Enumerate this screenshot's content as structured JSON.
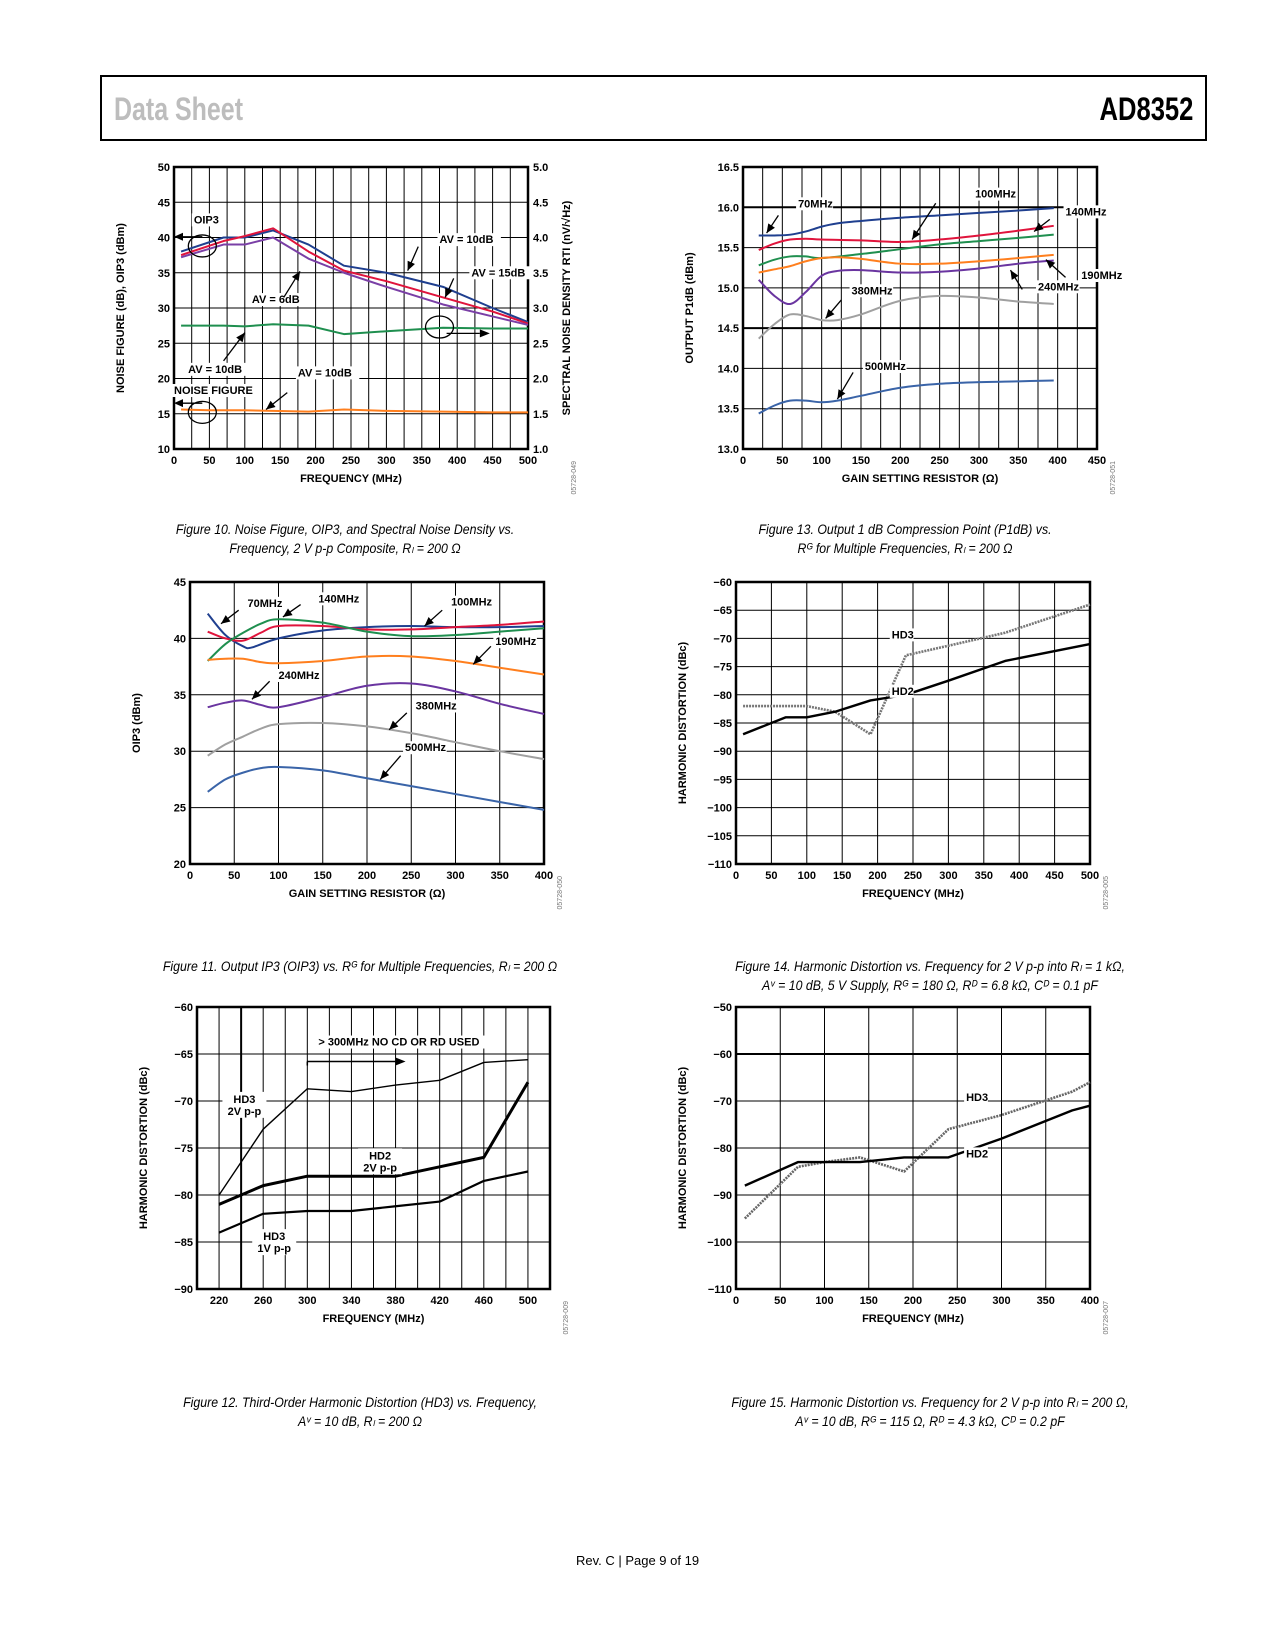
{
  "header": {
    "left": "Data Sheet",
    "right": "AD8352"
  },
  "footer": "Rev. C | Page 9 of 19",
  "chart_data": [
    {
      "id": "fig10",
      "type": "line",
      "caption": "Figure 10. Noise Figure, OIP3, and Spectral Noise Density vs. Frequency, 2 V p-p Composite, Rₗ = 200 Ω",
      "caption_lines": [
        "Figure 10. Noise Figure, OIP3, and Spectral Noise Density vs.",
        "Frequency, 2 V p-p Composite, Rₗ = 200 Ω"
      ],
      "xlabel": "FREQUENCY (MHz)",
      "ylabel": "NOISE FIGURE (dB), OIP3 (dBm)",
      "y2label": "SPECTRAL NOISE DENSITY RTI (nV/√Hz)",
      "xlim": [
        0,
        500
      ],
      "ylim": [
        10,
        50
      ],
      "y2lim": [
        1.0,
        5.0
      ],
      "xticks": [
        0,
        50,
        100,
        150,
        200,
        250,
        300,
        350,
        400,
        450,
        500
      ],
      "yticks": [
        10,
        15,
        20,
        25,
        30,
        35,
        40,
        45,
        50
      ],
      "y2ticks": [
        "1.0",
        "1.5",
        "2.0",
        "2.5",
        "3.0",
        "3.5",
        "4.0",
        "4.5",
        "5.0"
      ],
      "grid": true,
      "code": "05728-049",
      "series": [
        {
          "name": "OIP3 AV = 10dB",
          "color": "#1f3f8f",
          "axis": "left",
          "x": [
            10,
            70,
            100,
            140,
            190,
            240,
            300,
            380,
            450,
            500
          ],
          "y": [
            38,
            40,
            40,
            41,
            39,
            36,
            35,
            33,
            30,
            28
          ]
        },
        {
          "name": "OIP3 AV = 15dB",
          "color": "#e0143c",
          "axis": "left",
          "x": [
            10,
            70,
            100,
            140,
            190,
            240,
            300,
            380,
            450,
            500
          ],
          "y": [
            37.5,
            39.5,
            40.2,
            41.3,
            38,
            35.3,
            33.8,
            31.5,
            29.5,
            27.8
          ]
        },
        {
          "name": "OIP3 AV = 6dB",
          "color": "#7a3fa6",
          "axis": "left",
          "x": [
            10,
            70,
            100,
            140,
            190,
            240,
            300,
            380,
            450,
            500
          ],
          "y": [
            37.2,
            39,
            39,
            40,
            37,
            35,
            33,
            30.5,
            28.8,
            27.6
          ]
        },
        {
          "name": "Spectral noise density AV = 10dB",
          "color": "#1f8f4f",
          "axis": "left",
          "x": [
            10,
            70,
            100,
            140,
            190,
            240,
            300,
            380,
            450,
            500
          ],
          "y": [
            27.5,
            27.5,
            27.4,
            27.7,
            27.5,
            26.3,
            26.7,
            27.2,
            27.1,
            27.1
          ]
        },
        {
          "name": "Noise figure AV = 10dB",
          "color": "#ff7f1e",
          "axis": "left",
          "x": [
            10,
            50,
            100,
            140,
            190,
            240,
            300,
            380,
            450,
            500
          ],
          "y": [
            15.6,
            15.5,
            15.5,
            15.4,
            15.3,
            15.6,
            15.4,
            15.3,
            15.2,
            15.2
          ]
        }
      ],
      "annotations": [
        "OIP3",
        "AV = 10dB",
        "AV = 15dB",
        "AV = 6dB",
        "AV = 10dB",
        "NOISE FIGURE",
        "AV = 10dB"
      ]
    },
    {
      "id": "fig13",
      "type": "line",
      "caption_lines": [
        "Figure 13. Output 1 dB Compression Point (P1dB) vs.",
        "Rᴳ for Multiple Frequencies, Rₗ = 200 Ω"
      ],
      "xlabel": "GAIN SETTING RESISTOR (Ω)",
      "ylabel": "OUTPUT P1dB (dBm)",
      "xlim": [
        0,
        450
      ],
      "ylim": [
        13.0,
        16.5
      ],
      "xticks": [
        0,
        50,
        100,
        150,
        200,
        250,
        300,
        350,
        400,
        450
      ],
      "yticks": [
        "13.0",
        "13.5",
        "14.0",
        "14.5",
        "15.0",
        "15.5",
        "16.0",
        "16.5"
      ],
      "grid": true,
      "code": "05728-051",
      "series": [
        {
          "name": "70MHz",
          "color": "#1f3f8f",
          "x": [
            20,
            40,
            60,
            80,
            100,
            120,
            150,
            200,
            250,
            300,
            350,
            395
          ],
          "y": [
            15.65,
            15.65,
            15.66,
            15.7,
            15.76,
            15.8,
            15.83,
            15.87,
            15.9,
            15.93,
            15.96,
            15.99
          ]
        },
        {
          "name": "100MHz",
          "color": "#e0143c",
          "x": [
            20,
            40,
            60,
            80,
            100,
            150,
            200,
            250,
            300,
            350,
            395
          ],
          "y": [
            15.47,
            15.55,
            15.6,
            15.61,
            15.6,
            15.59,
            15.57,
            15.6,
            15.65,
            15.71,
            15.77
          ]
        },
        {
          "name": "140MHz",
          "color": "#1f8f4f",
          "x": [
            20,
            40,
            60,
            80,
            100,
            150,
            200,
            250,
            300,
            350,
            395
          ],
          "y": [
            15.28,
            15.35,
            15.39,
            15.39,
            15.37,
            15.42,
            15.48,
            15.54,
            15.58,
            15.62,
            15.66
          ]
        },
        {
          "name": "190MHz",
          "color": "#ff7f1e",
          "x": [
            20,
            40,
            60,
            80,
            100,
            120,
            150,
            200,
            250,
            300,
            350,
            395
          ],
          "y": [
            15.19,
            15.23,
            15.27,
            15.33,
            15.37,
            15.38,
            15.36,
            15.3,
            15.3,
            15.33,
            15.37,
            15.41
          ]
        },
        {
          "name": "240MHz",
          "color": "#6a35a0",
          "x": [
            20,
            40,
            60,
            80,
            100,
            120,
            150,
            200,
            250,
            300,
            350,
            395
          ],
          "y": [
            15.1,
            14.9,
            14.8,
            14.95,
            15.15,
            15.21,
            15.22,
            15.19,
            15.2,
            15.24,
            15.3,
            15.34
          ]
        },
        {
          "name": "380MHz",
          "color": "#a0a0a0",
          "x": [
            20,
            40,
            60,
            80,
            100,
            120,
            150,
            200,
            250,
            300,
            350,
            395
          ],
          "y": [
            14.37,
            14.55,
            14.67,
            14.65,
            14.6,
            14.6,
            14.67,
            14.84,
            14.9,
            14.88,
            14.83,
            14.8
          ]
        },
        {
          "name": "500MHz",
          "color": "#3a64a8",
          "x": [
            20,
            40,
            60,
            80,
            100,
            120,
            150,
            200,
            250,
            300,
            350,
            395
          ],
          "y": [
            13.44,
            13.54,
            13.6,
            13.6,
            13.58,
            13.6,
            13.66,
            13.76,
            13.81,
            13.83,
            13.84,
            13.85
          ]
        }
      ],
      "annotations": [
        "70MHz",
        "100MHz",
        "140MHz",
        "190MHz",
        "240MHz",
        "380MHz",
        "500MHz"
      ]
    },
    {
      "id": "fig11",
      "type": "line",
      "caption_lines": [
        "Figure 11. Output IP3 (OIP3) vs. Rᴳ for Multiple Frequencies, Rₗ = 200 Ω"
      ],
      "xlabel": "GAIN SETTING RESISTOR (Ω)",
      "ylabel": "OIP3 (dBm)",
      "xlim": [
        0,
        400
      ],
      "ylim": [
        20,
        45
      ],
      "xticks": [
        0,
        50,
        100,
        150,
        200,
        250,
        300,
        350,
        400
      ],
      "yticks": [
        20,
        25,
        30,
        35,
        40,
        45
      ],
      "grid": true,
      "code": "05728-050",
      "series": [
        {
          "name": "70MHz",
          "color": "#1f3f8f",
          "x": [
            20,
            40,
            60,
            70,
            100,
            150,
            200,
            250,
            300,
            350,
            400
          ],
          "y": [
            42.2,
            40.3,
            39.3,
            39.2,
            40,
            40.7,
            41,
            41.1,
            41,
            41,
            41.1
          ]
        },
        {
          "name": "100MHz",
          "color": "#e0143c",
          "x": [
            20,
            40,
            60,
            80,
            100,
            150,
            200,
            250,
            300,
            350,
            400
          ],
          "y": [
            40.6,
            40,
            39.8,
            40.5,
            41.1,
            41.1,
            40.8,
            40.8,
            41,
            41.2,
            41.5
          ]
        },
        {
          "name": "140MHz",
          "color": "#1f8f4f",
          "x": [
            20,
            40,
            60,
            80,
            100,
            150,
            200,
            250,
            300,
            350,
            400
          ],
          "y": [
            38,
            39.5,
            40.5,
            41.3,
            41.7,
            41.4,
            40.6,
            40.2,
            40.3,
            40.6,
            40.9
          ]
        },
        {
          "name": "190MHz",
          "color": "#ff7f1e",
          "x": [
            20,
            40,
            60,
            80,
            100,
            150,
            200,
            250,
            300,
            350,
            400
          ],
          "y": [
            38.1,
            38.2,
            38.2,
            37.9,
            37.8,
            38,
            38.4,
            38.4,
            38,
            37.4,
            36.8
          ]
        },
        {
          "name": "240MHz",
          "color": "#6a35a0",
          "x": [
            20,
            40,
            60,
            80,
            100,
            150,
            200,
            250,
            300,
            350,
            400
          ],
          "y": [
            33.9,
            34.3,
            34.5,
            34.1,
            33.9,
            34.8,
            35.8,
            36,
            35.3,
            34.2,
            33.3
          ]
        },
        {
          "name": "380MHz",
          "color": "#a0a0a0",
          "x": [
            20,
            40,
            60,
            80,
            100,
            150,
            200,
            250,
            300,
            350,
            400
          ],
          "y": [
            29.6,
            30.6,
            31.3,
            32,
            32.4,
            32.5,
            32.2,
            31.6,
            30.8,
            30,
            29.3
          ]
        },
        {
          "name": "500MHz",
          "color": "#3a64a8",
          "x": [
            20,
            40,
            60,
            80,
            100,
            150,
            200,
            250,
            300,
            350,
            400
          ],
          "y": [
            26.4,
            27.5,
            28.1,
            28.5,
            28.6,
            28.3,
            27.6,
            26.9,
            26.2,
            25.5,
            24.8
          ]
        }
      ],
      "annotations": [
        "70MHz",
        "140MHz",
        "100MHz",
        "190MHz",
        "240MHz",
        "380MHz",
        "500MHz"
      ]
    },
    {
      "id": "fig14",
      "type": "line",
      "caption_lines": [
        "Figure 14. Harmonic Distortion vs. Frequency for 2 V p-p into Rₗ = 1 kΩ,",
        "Aᵛ = 10 dB, 5 V Supply, Rᴳ = 180 Ω, Rᴰ = 6.8 kΩ, Cᴰ = 0.1 pF"
      ],
      "xlabel": "FREQUENCY (MHz)",
      "ylabel": "HARMONIC DISTORTION (dBc)",
      "xlim": [
        0,
        500
      ],
      "ylim": [
        -110,
        -60
      ],
      "xticks": [
        0,
        50,
        100,
        150,
        200,
        250,
        300,
        350,
        400,
        450,
        500
      ],
      "yticks": [
        "−110",
        "−105",
        "−100",
        "−95",
        "−90",
        "−85",
        "−80",
        "−75",
        "−70",
        "−65",
        "−60"
      ],
      "grid": true,
      "code": "05728-005",
      "series": [
        {
          "name": "HD3",
          "color": "#777777",
          "dashed": true,
          "x": [
            10,
            100,
            140,
            190,
            240,
            300,
            380,
            500
          ],
          "y": [
            -82,
            -82,
            -83,
            -87,
            -73,
            -71.3,
            -69,
            -64
          ]
        },
        {
          "name": "HD2",
          "color": "#000000",
          "x": [
            10,
            50,
            70,
            100,
            140,
            190,
            240,
            300,
            380,
            500
          ],
          "y": [
            -87,
            -85,
            -84,
            -84,
            -83,
            -81,
            -80,
            -77.5,
            -74,
            -71
          ]
        }
      ],
      "annotations": [
        "HD3",
        "HD2"
      ]
    },
    {
      "id": "fig12",
      "type": "line",
      "caption_lines": [
        "Figure 12. Third-Order Harmonic Distortion (HD3) vs. Frequency,",
        "Aᵛ = 10 dB, Rₗ = 200 Ω"
      ],
      "xlabel": "FREQUENCY (MHz)",
      "ylabel": "HARMONIC DISTORTION (dBc)",
      "xlim": [
        200,
        520
      ],
      "ylim": [
        -90,
        -60
      ],
      "xticks": [
        220,
        260,
        300,
        340,
        380,
        420,
        460,
        500
      ],
      "yticks": [
        "−90",
        "−85",
        "−80",
        "−75",
        "−70",
        "−65",
        "−60"
      ],
      "grid": true,
      "code": "05728-009",
      "series": [
        {
          "name": "HD3 2V p-p",
          "color": "#000000",
          "width": "thin",
          "x": [
            220,
            260,
            300,
            340,
            380,
            420,
            460,
            500
          ],
          "y": [
            -80,
            -73,
            -68.7,
            -69,
            -68.3,
            -67.8,
            -65.9,
            -65.6
          ]
        },
        {
          "name": "HD2 2V p-p",
          "color": "#000000",
          "width": "thick",
          "x": [
            220,
            260,
            300,
            340,
            380,
            420,
            460,
            500
          ],
          "y": [
            -81,
            -79,
            -78,
            -78,
            -78,
            -77,
            -76,
            -68
          ]
        },
        {
          "name": "HD3 1V p-p",
          "color": "#000000",
          "width": "medium",
          "x": [
            220,
            260,
            300,
            340,
            380,
            420,
            460,
            500
          ],
          "y": [
            -84,
            -82,
            -81.7,
            -81.7,
            -81.2,
            -80.7,
            -78.5,
            -77.5
          ]
        }
      ],
      "annotations": [
        "> 300MHz NO CD OR RD USED",
        "HD3 2V p-p",
        "HD2 2V p-p",
        "HD3 1V p-p"
      ]
    },
    {
      "id": "fig15",
      "type": "line",
      "caption_lines": [
        "Figure 15. Harmonic Distortion vs. Frequency for 2 V p-p into Rₗ = 200 Ω,",
        "Aᵛ = 10 dB, Rᴳ = 115 Ω, Rᴰ = 4.3 kΩ, Cᴰ = 0.2 pF"
      ],
      "xlabel": "FREQUENCY (MHz)",
      "ylabel": "HARMONIC DISTORTION (dBc)",
      "xlim": [
        0,
        400
      ],
      "ylim": [
        -110,
        -50
      ],
      "xticks": [
        0,
        50,
        100,
        150,
        200,
        250,
        300,
        350,
        400
      ],
      "yticks": [
        "−110",
        "−100",
        "−90",
        "−80",
        "−70",
        "−60",
        "−50"
      ],
      "grid": true,
      "code": "05728-007",
      "series": [
        {
          "name": "HD3",
          "color": "#666666",
          "dashed": true,
          "x": [
            10,
            70,
            100,
            140,
            190,
            240,
            300,
            380,
            400
          ],
          "y": [
            -95,
            -84,
            -83,
            -82,
            -85,
            -76,
            -73,
            -68,
            -66
          ]
        },
        {
          "name": "HD2",
          "color": "#000000",
          "x": [
            10,
            70,
            100,
            140,
            190,
            240,
            300,
            380,
            400
          ],
          "y": [
            -88,
            -83,
            -83,
            -83,
            -82,
            -82,
            -78,
            -72,
            -71
          ]
        }
      ],
      "annotations": [
        "HD3",
        "HD2"
      ]
    }
  ]
}
